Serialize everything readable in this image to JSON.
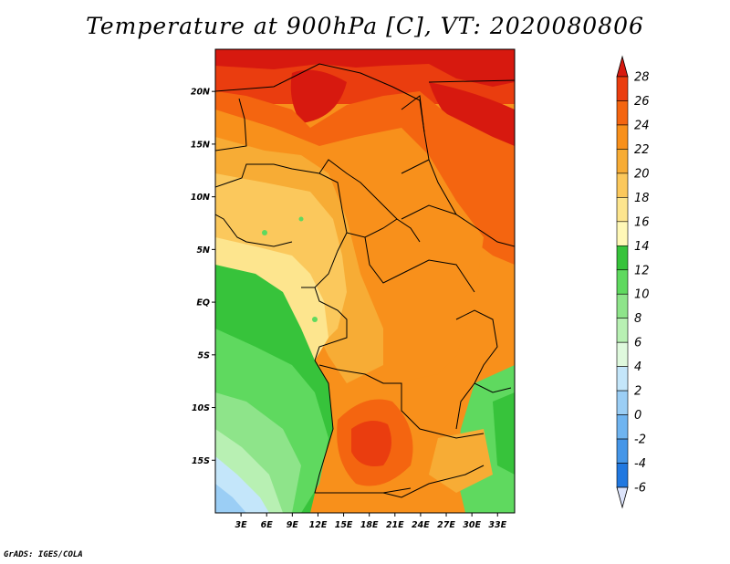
{
  "title": "Temperature at 900hPa [C], VT: 2020080806",
  "credit": "GrADS: IGES/COLA",
  "map": {
    "lat_ticks": [
      "20N",
      "15N",
      "10N",
      "5N",
      "EQ",
      "5S",
      "10S",
      "15S"
    ],
    "lon_ticks": [
      "3E",
      "6E",
      "9E",
      "12E",
      "15E",
      "18E",
      "21E",
      "24E",
      "27E",
      "30E",
      "33E"
    ],
    "lat_range": [
      -20,
      24
    ],
    "lon_range": [
      0,
      35
    ]
  },
  "colorbar": {
    "labels": [
      "28",
      "26",
      "24",
      "22",
      "20",
      "18",
      "16",
      "14",
      "12",
      "10",
      "8",
      "6",
      "4",
      "2",
      "0",
      "-2",
      "-4",
      "-6"
    ],
    "colors": [
      "#d7190f",
      "#ea3d0f",
      "#f46510",
      "#f8901b",
      "#f7ac35",
      "#fbc85c",
      "#fde58e",
      "#fff8b7",
      "#37c33b",
      "#5fd95f",
      "#8ee48a",
      "#b8f0b3",
      "#dff9dd",
      "#c4e6fa",
      "#9bcef5",
      "#6fb4f0",
      "#4596e8",
      "#2178e0",
      "#1359cc",
      "#0a3cb2",
      "#062c96",
      "#b8c8f5"
    ],
    "over_color": "#d7190f",
    "under_color": "#dde4fb"
  }
}
